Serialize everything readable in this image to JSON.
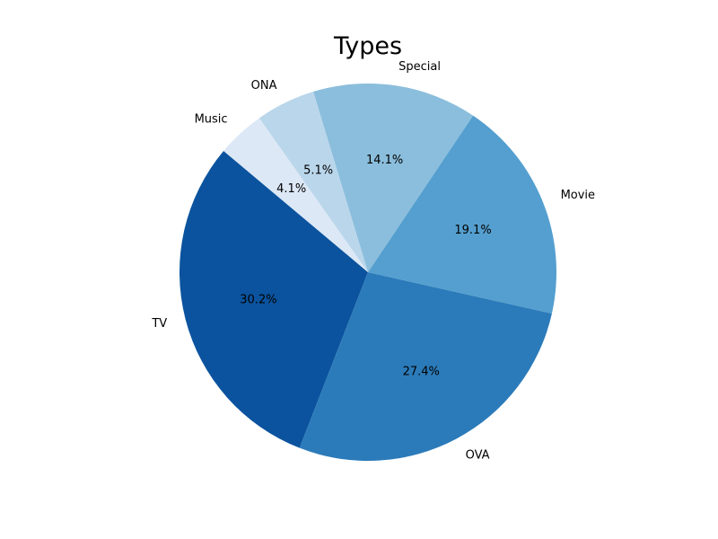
{
  "chart_data": {
    "type": "pie",
    "title": "Types",
    "labels": [
      "TV",
      "OVA",
      "Movie",
      "Special",
      "ONA",
      "Music"
    ],
    "values": [
      30.2,
      27.4,
      19.1,
      14.1,
      5.1,
      4.1
    ],
    "percent_labels": [
      "30.2%",
      "27.4%",
      "19.1%",
      "14.1%",
      "5.1%",
      "4.1%"
    ],
    "colors": [
      "#0b539e",
      "#2b7bba",
      "#549fcf",
      "#8bbedc",
      "#bad6eb",
      "#dce8f6"
    ],
    "start_angle_deg": 140,
    "direction": "counterclockwise",
    "legend": "none"
  }
}
